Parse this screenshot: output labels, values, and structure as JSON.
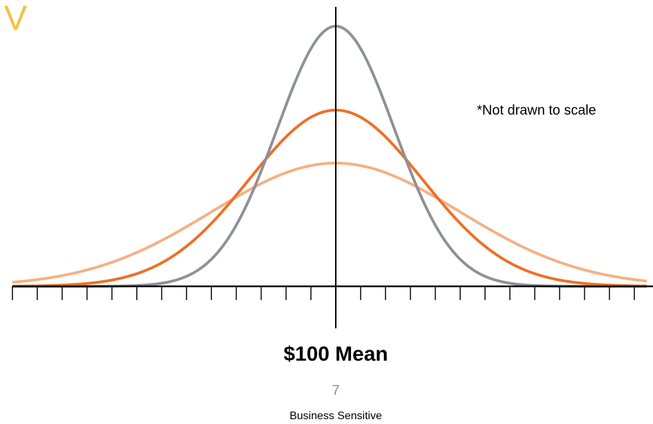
{
  "slide": {
    "corner_letter": "V",
    "note": "*Not drawn to scale",
    "axis_label": "$100 Mean",
    "page_number": "7",
    "footer": "Business Sensitive"
  }
}
